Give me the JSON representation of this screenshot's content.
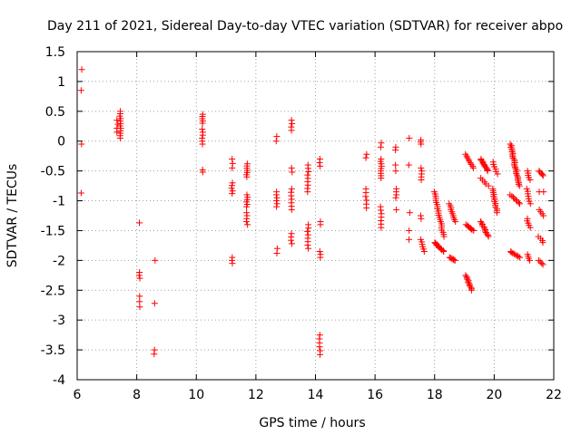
{
  "chart_data": {
    "type": "scatter",
    "title": "Day 211 of 2021, Sidereal Day-to-day VTEC variation (SDTVAR) for receiver abpo",
    "xlabel": "GPS time / hours",
    "ylabel": "SDTVAR / TECUs",
    "xlim": [
      6,
      22
    ],
    "ylim": [
      -4,
      1.5
    ],
    "xticks": [
      6,
      8,
      10,
      12,
      14,
      16,
      18,
      20,
      22
    ],
    "yticks": [
      1.5,
      1,
      0.5,
      0,
      -0.5,
      -1,
      -1.5,
      -2,
      -2.5,
      -3,
      -3.5,
      -4
    ],
    "grid": true,
    "marker": "+",
    "series_color": "#ff0000",
    "clusters": [
      {
        "x0": 6.15,
        "x1": 6.15,
        "y0": 1.2,
        "y1": 0.85,
        "n": 2
      },
      {
        "x0": 6.15,
        "x1": 6.15,
        "y0": -0.05,
        "y1": -0.05,
        "n": 1
      },
      {
        "x0": 6.15,
        "x1": 6.15,
        "y0": -0.87,
        "y1": -0.87,
        "n": 1
      },
      {
        "x0": 7.45,
        "x1": 7.45,
        "y0": 0.5,
        "y1": 0.05,
        "n": 12
      },
      {
        "x0": 7.35,
        "x1": 7.35,
        "y0": 0.35,
        "y1": 0.15,
        "n": 4
      },
      {
        "x0": 8.1,
        "x1": 8.1,
        "y0": -1.37,
        "y1": -1.37,
        "n": 1
      },
      {
        "x0": 8.1,
        "x1": 8.1,
        "y0": -2.2,
        "y1": -2.3,
        "n": 3
      },
      {
        "x0": 8.1,
        "x1": 8.1,
        "y0": -2.6,
        "y1": -2.78,
        "n": 3
      },
      {
        "x0": 8.6,
        "x1": 8.6,
        "y0": -2.0,
        "y1": -2.0,
        "n": 1
      },
      {
        "x0": 8.6,
        "x1": 8.6,
        "y0": -2.72,
        "y1": -2.72,
        "n": 1
      },
      {
        "x0": 8.6,
        "x1": 8.6,
        "y0": -3.5,
        "y1": -3.57,
        "n": 2
      },
      {
        "x0": 10.2,
        "x1": 10.2,
        "y0": 0.45,
        "y1": 0.3,
        "n": 5
      },
      {
        "x0": 10.2,
        "x1": 10.2,
        "y0": 0.2,
        "y1": -0.05,
        "n": 6
      },
      {
        "x0": 10.2,
        "x1": 10.2,
        "y0": -0.48,
        "y1": -0.52,
        "n": 2
      },
      {
        "x0": 11.2,
        "x1": 11.2,
        "y0": -0.3,
        "y1": -0.45,
        "n": 3
      },
      {
        "x0": 11.2,
        "x1": 11.2,
        "y0": -0.7,
        "y1": -0.88,
        "n": 5
      },
      {
        "x0": 11.2,
        "x1": 11.2,
        "y0": -1.95,
        "y1": -2.05,
        "n": 3
      },
      {
        "x0": 11.7,
        "x1": 11.7,
        "y0": -0.38,
        "y1": -0.6,
        "n": 7
      },
      {
        "x0": 11.7,
        "x1": 11.7,
        "y0": -0.9,
        "y1": -1.1,
        "n": 6
      },
      {
        "x0": 11.7,
        "x1": 11.7,
        "y0": -1.2,
        "y1": -1.4,
        "n": 5
      },
      {
        "x0": 12.7,
        "x1": 12.7,
        "y0": 0.08,
        "y1": 0.0,
        "n": 2
      },
      {
        "x0": 12.7,
        "x1": 12.7,
        "y0": -0.85,
        "y1": -1.1,
        "n": 6
      },
      {
        "x0": 12.7,
        "x1": 12.7,
        "y0": -1.8,
        "y1": -1.88,
        "n": 2
      },
      {
        "x0": 13.2,
        "x1": 13.2,
        "y0": 0.35,
        "y1": 0.18,
        "n": 4
      },
      {
        "x0": 13.2,
        "x1": 13.2,
        "y0": -0.45,
        "y1": -0.52,
        "n": 2
      },
      {
        "x0": 13.2,
        "x1": 13.2,
        "y0": -0.8,
        "y1": -1.15,
        "n": 7
      },
      {
        "x0": 13.2,
        "x1": 13.2,
        "y0": -1.55,
        "y1": -1.72,
        "n": 4
      },
      {
        "x0": 13.75,
        "x1": 13.75,
        "y0": -0.4,
        "y1": -0.85,
        "n": 9
      },
      {
        "x0": 13.75,
        "x1": 13.75,
        "y0": -1.4,
        "y1": -1.8,
        "n": 8
      },
      {
        "x0": 14.15,
        "x1": 14.15,
        "y0": -0.3,
        "y1": -0.42,
        "n": 3
      },
      {
        "x0": 14.15,
        "x1": 14.15,
        "y0": -1.35,
        "y1": -1.4,
        "n": 2
      },
      {
        "x0": 14.15,
        "x1": 14.15,
        "y0": -1.85,
        "y1": -1.95,
        "n": 3
      },
      {
        "x0": 14.15,
        "x1": 14.15,
        "y0": -3.25,
        "y1": -3.58,
        "n": 6
      },
      {
        "x0": 15.7,
        "x1": 15.7,
        "y0": -0.22,
        "y1": -0.28,
        "n": 2
      },
      {
        "x0": 15.7,
        "x1": 15.7,
        "y0": -0.8,
        "y1": -1.12,
        "n": 6
      },
      {
        "x0": 16.2,
        "x1": 16.2,
        "y0": -0.03,
        "y1": -0.1,
        "n": 2
      },
      {
        "x0": 16.2,
        "x1": 16.2,
        "y0": -0.3,
        "y1": -0.62,
        "n": 9
      },
      {
        "x0": 16.2,
        "x1": 16.2,
        "y0": -1.1,
        "y1": -1.45,
        "n": 7
      },
      {
        "x0": 16.7,
        "x1": 16.7,
        "y0": -0.1,
        "y1": -0.15,
        "n": 2
      },
      {
        "x0": 16.7,
        "x1": 16.7,
        "y0": -0.4,
        "y1": -0.5,
        "n": 2
      },
      {
        "x0": 16.7,
        "x1": 16.7,
        "y0": -0.8,
        "y1": -0.95,
        "n": 4
      },
      {
        "x0": 16.7,
        "x1": 16.7,
        "y0": -1.15,
        "y1": -1.15,
        "n": 1
      },
      {
        "x0": 17.15,
        "x1": 17.15,
        "y0": 0.05,
        "y1": 0.05,
        "n": 1
      },
      {
        "x0": 17.15,
        "x1": 17.15,
        "y0": -0.4,
        "y1": -0.4,
        "n": 1
      },
      {
        "x0": 17.15,
        "x1": 17.15,
        "y0": -1.2,
        "y1": -1.2,
        "n": 1
      },
      {
        "x0": 17.15,
        "x1": 17.15,
        "y0": -1.5,
        "y1": -1.65,
        "n": 2
      },
      {
        "x0": 17.55,
        "x1": 17.55,
        "y0": 0.02,
        "y1": -0.05,
        "n": 3
      },
      {
        "x0": 17.55,
        "x1": 17.55,
        "y0": -0.45,
        "y1": -0.65,
        "n": 5
      },
      {
        "x0": 17.55,
        "x1": 17.55,
        "y0": -1.25,
        "y1": -1.3,
        "n": 2
      },
      {
        "x0": 17.55,
        "x1": 17.65,
        "y0": -1.65,
        "y1": -1.85,
        "n": 6
      },
      {
        "x0": 18.0,
        "x1": 18.3,
        "y0": -0.85,
        "y1": -1.6,
        "n": 22
      },
      {
        "x0": 18.0,
        "x1": 18.3,
        "y0": -1.7,
        "y1": -1.85,
        "n": 12
      },
      {
        "x0": 18.5,
        "x1": 18.7,
        "y0": -1.05,
        "y1": -1.35,
        "n": 10
      },
      {
        "x0": 18.5,
        "x1": 18.7,
        "y0": -1.95,
        "y1": -2.0,
        "n": 7
      },
      {
        "x0": 19.05,
        "x1": 19.3,
        "y0": -0.22,
        "y1": -0.45,
        "n": 9
      },
      {
        "x0": 19.05,
        "x1": 19.3,
        "y0": -1.4,
        "y1": -1.5,
        "n": 8
      },
      {
        "x0": 19.05,
        "x1": 19.25,
        "y0": -2.25,
        "y1": -2.5,
        "n": 12
      },
      {
        "x0": 19.55,
        "x1": 19.8,
        "y0": -0.3,
        "y1": -0.5,
        "n": 12
      },
      {
        "x0": 19.55,
        "x1": 19.8,
        "y0": -0.62,
        "y1": -0.75,
        "n": 5
      },
      {
        "x0": 19.55,
        "x1": 19.8,
        "y0": -1.35,
        "y1": -1.6,
        "n": 12
      },
      {
        "x0": 19.95,
        "x1": 20.1,
        "y0": -0.35,
        "y1": -0.55,
        "n": 6
      },
      {
        "x0": 19.95,
        "x1": 20.1,
        "y0": -0.8,
        "y1": -1.2,
        "n": 14
      },
      {
        "x0": 20.55,
        "x1": 20.85,
        "y0": -0.05,
        "y1": -0.75,
        "n": 28
      },
      {
        "x0": 20.55,
        "x1": 20.85,
        "y0": -0.9,
        "y1": -1.05,
        "n": 8
      },
      {
        "x0": 20.55,
        "x1": 20.85,
        "y0": -1.85,
        "y1": -1.95,
        "n": 8
      },
      {
        "x0": 21.1,
        "x1": 21.2,
        "y0": -0.5,
        "y1": -0.65,
        "n": 5
      },
      {
        "x0": 21.1,
        "x1": 21.2,
        "y0": -0.8,
        "y1": -1.05,
        "n": 7
      },
      {
        "x0": 21.1,
        "x1": 21.2,
        "y0": -1.3,
        "y1": -1.45,
        "n": 5
      },
      {
        "x0": 21.1,
        "x1": 21.2,
        "y0": -1.9,
        "y1": -2.0,
        "n": 4
      },
      {
        "x0": 21.5,
        "x1": 21.65,
        "y0": -0.5,
        "y1": -0.58,
        "n": 5
      },
      {
        "x0": 21.5,
        "x1": 21.65,
        "y0": -0.85,
        "y1": -0.85,
        "n": 2
      },
      {
        "x0": 21.5,
        "x1": 21.65,
        "y0": -1.15,
        "y1": -1.25,
        "n": 4
      },
      {
        "x0": 21.5,
        "x1": 21.65,
        "y0": -1.6,
        "y1": -1.7,
        "n": 4
      },
      {
        "x0": 21.5,
        "x1": 21.65,
        "y0": -2.0,
        "y1": -2.07,
        "n": 4
      }
    ]
  }
}
